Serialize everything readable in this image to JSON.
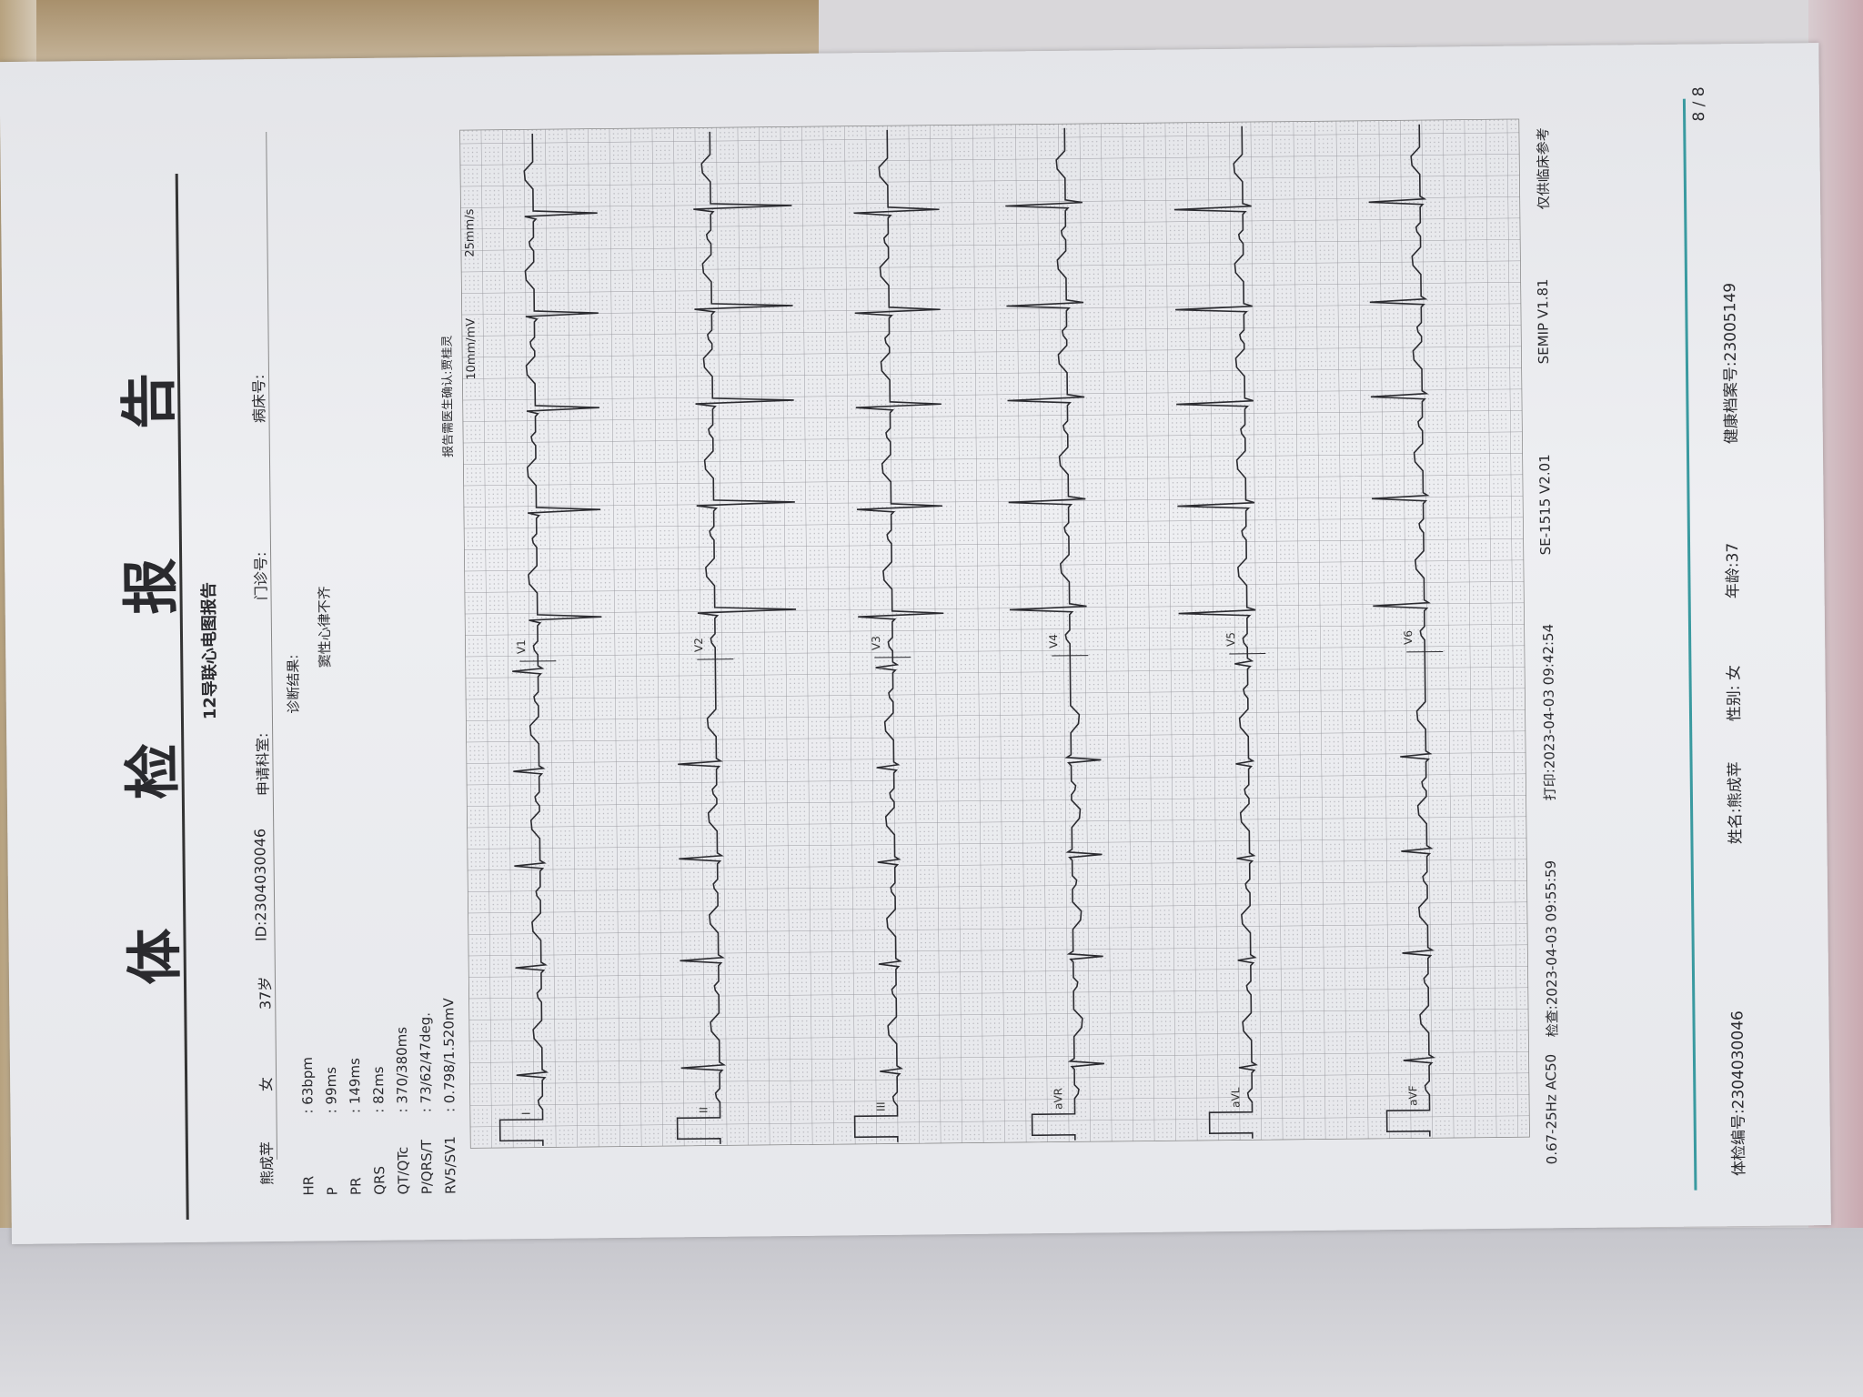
{
  "document": {
    "title": "体 检 报 告",
    "subtitle": "12导联心电图报告",
    "header": {
      "name": "熊成苹",
      "sex": "女",
      "age": "37岁",
      "id": "ID:2304030046",
      "department": "申请科室:",
      "outpatient_no": "门诊号:",
      "bed_no": "病床号:"
    },
    "measurements": [
      {
        "label": "HR",
        "value": ": 63bpm"
      },
      {
        "label": "P",
        "value": ": 99ms"
      },
      {
        "label": "PR",
        "value": ": 149ms"
      },
      {
        "label": "QRS",
        "value": ": 82ms"
      },
      {
        "label": "QT/QTc",
        "value": ": 370/380ms"
      },
      {
        "label": "P/QRS/T",
        "value": ": 73/62/47deg."
      },
      {
        "label": "RV5/SV1",
        "value": ": 0.798/1.520mV"
      }
    ],
    "diagnosis_label": "诊断结果:",
    "diagnosis": "窦性心律不齐",
    "confirm_note": "报告需医生确认:贾桂灵",
    "ecg": {
      "gain": "10mm/mV",
      "speed": "25mm/s",
      "rows": [
        {
          "limb": "I",
          "chest": "V1"
        },
        {
          "limb": "II",
          "chest": "V2"
        },
        {
          "limb": "III",
          "chest": "V3"
        },
        {
          "limb": "aVR",
          "chest": "V4"
        },
        {
          "limb": "aVL",
          "chest": "V5"
        },
        {
          "limb": "aVF",
          "chest": "V6"
        }
      ]
    },
    "ecg_footer": {
      "filter": "0.67-25Hz AC50",
      "exam_time": "检查:2023-04-03 09:55:59",
      "print_time": "打印:2023-04-03 09:42:54",
      "device": "SE-1515 V2.01",
      "software": "SEMIP V1.81",
      "disclaimer": "仅供临床参考"
    },
    "page_footer": {
      "exam_no": "体检编号:2304030046",
      "name": "姓名:熊成苹",
      "sex": "性别: 女",
      "age": "年龄:37",
      "health_record": "健康档案号:23005149",
      "page": "8 / 8"
    },
    "colors": {
      "footer_rule": "#3a9aa0",
      "ink": "#2a2a2e"
    }
  }
}
